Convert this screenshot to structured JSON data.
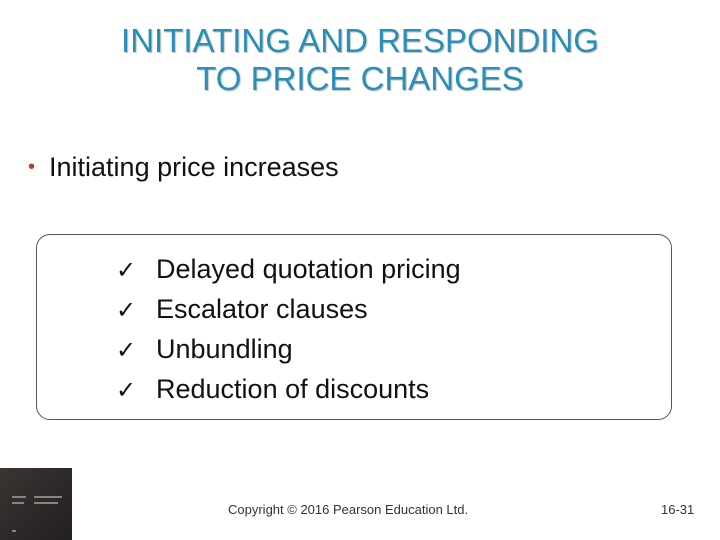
{
  "slide": {
    "title_lines": [
      "INITIATING AND RESPONDING",
      "TO PRICE CHANGES"
    ],
    "bullet": "Initiating price increases",
    "check_items": [
      "Delayed quotation pricing",
      "Escalator clauses",
      "Unbundling",
      "Reduction of discounts"
    ],
    "check_glyph": "ü",
    "bullet_glyph": "•",
    "copyright": "Copyright © 2016 Pearson Education Ltd.",
    "page_number": "16-31"
  },
  "colors": {
    "title": "#2a8fb8",
    "bullet_dot": "#c0392b",
    "book_cover": "#2e2828"
  },
  "icons": {
    "book": "book-cover-icon"
  }
}
